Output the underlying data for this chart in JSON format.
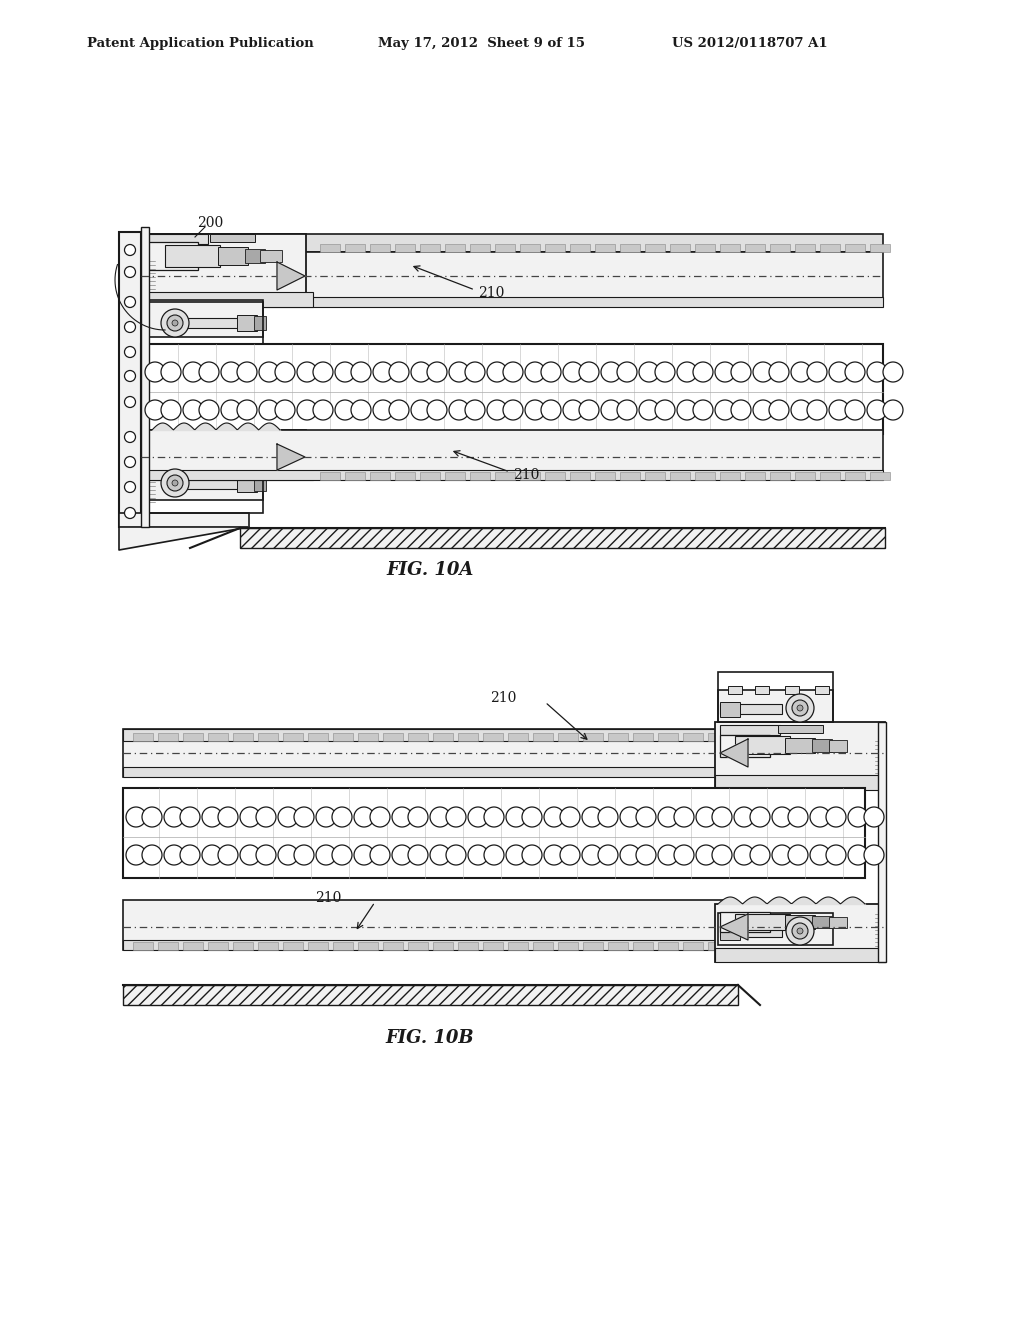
{
  "background_color": "#ffffff",
  "header_left": "Patent Application Publication",
  "header_mid": "May 17, 2012  Sheet 9 of 15",
  "header_right": "US 2012/0118707 A1",
  "fig10a_label": "FIG. 10A",
  "fig10b_label": "FIG. 10B",
  "label_200": "200",
  "label_210": "210",
  "lc": "#1a1a1a",
  "fc_light": "#f2f2f2",
  "fc_med": "#e0e0e0",
  "fc_dark": "#c8c8c8",
  "fc_darkest": "#a8a8a8"
}
